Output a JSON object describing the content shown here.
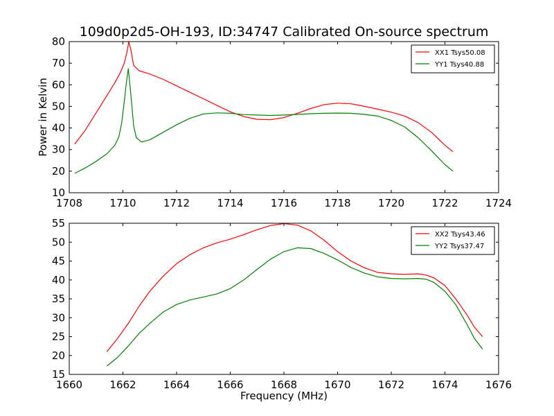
{
  "title": "109d0p2d5-OH-193, ID:34747 Calibrated On-source spectrum",
  "xlabel": "Frequency (MHz)",
  "chart_data": [
    {
      "type": "line",
      "title": "109d0p2d5-OH-193, ID:34747 Calibrated On-source spectrum",
      "ylabel": "Power in Kelvin",
      "xlim": [
        1708,
        1724
      ],
      "ylim": [
        10,
        80
      ],
      "xticks": [
        1708,
        1710,
        1712,
        1714,
        1716,
        1718,
        1720,
        1722,
        1724
      ],
      "yticks": [
        10,
        20,
        30,
        40,
        50,
        60,
        70,
        80
      ],
      "legend_position": "top-right",
      "series": [
        {
          "name": "XX1 Tsys50.08",
          "color": "#ff0000",
          "x": [
            1708.2,
            1708.6,
            1709.0,
            1709.4,
            1709.7,
            1709.9,
            1710.05,
            1710.15,
            1710.22,
            1710.3,
            1710.4,
            1710.6,
            1711.0,
            1711.5,
            1712.0,
            1712.5,
            1713.0,
            1713.5,
            1714.0,
            1714.5,
            1715.0,
            1715.5,
            1716.0,
            1716.5,
            1717.0,
            1717.5,
            1718.0,
            1718.5,
            1719.0,
            1719.5,
            1720.0,
            1720.5,
            1721.0,
            1721.5,
            1722.0,
            1722.3
          ],
          "y": [
            32.5,
            39.0,
            47.0,
            55.0,
            61.0,
            65.5,
            70.0,
            75.0,
            80.0,
            76.0,
            69.0,
            66.5,
            65.0,
            62.5,
            59.5,
            56.5,
            53.5,
            50.5,
            47.5,
            45.3,
            44.0,
            43.8,
            44.8,
            46.8,
            49.0,
            50.8,
            51.5,
            51.2,
            50.0,
            48.7,
            47.3,
            45.5,
            42.5,
            38.0,
            32.0,
            29.0
          ]
        },
        {
          "name": "YY1 Tsys40.88",
          "color": "#008000",
          "x": [
            1708.2,
            1708.6,
            1709.0,
            1709.4,
            1709.7,
            1709.85,
            1709.95,
            1710.05,
            1710.12,
            1710.2,
            1710.3,
            1710.4,
            1710.5,
            1710.7,
            1711.0,
            1711.5,
            1712.0,
            1712.5,
            1713.0,
            1713.5,
            1714.0,
            1714.5,
            1715.0,
            1715.5,
            1716.0,
            1716.5,
            1717.0,
            1717.5,
            1718.0,
            1718.5,
            1719.0,
            1719.5,
            1720.0,
            1720.5,
            1721.0,
            1721.5,
            1722.0,
            1722.3
          ],
          "y": [
            19.0,
            21.5,
            24.5,
            28.0,
            32.0,
            36.0,
            42.0,
            52.0,
            60.0,
            67.5,
            55.0,
            41.0,
            35.5,
            33.5,
            34.5,
            38.0,
            41.5,
            44.5,
            46.5,
            47.0,
            46.8,
            46.2,
            46.0,
            45.8,
            46.0,
            46.3,
            46.6,
            46.8,
            46.9,
            46.8,
            46.3,
            45.5,
            43.5,
            40.5,
            35.5,
            29.5,
            23.0,
            20.0
          ]
        }
      ]
    },
    {
      "type": "line",
      "xlabel": "Frequency (MHz)",
      "xlim": [
        1660,
        1676
      ],
      "ylim": [
        15,
        55
      ],
      "xticks": [
        1660,
        1662,
        1664,
        1666,
        1668,
        1670,
        1672,
        1674,
        1676
      ],
      "yticks": [
        15,
        20,
        25,
        30,
        35,
        40,
        45,
        50,
        55
      ],
      "legend_position": "top-right",
      "series": [
        {
          "name": "XX2 Tsys43.46",
          "color": "#ff0000",
          "x": [
            1661.4,
            1661.8,
            1662.2,
            1662.6,
            1663.0,
            1663.5,
            1664.0,
            1664.5,
            1665.0,
            1665.5,
            1666.0,
            1666.5,
            1667.0,
            1667.5,
            1668.0,
            1668.5,
            1669.0,
            1669.5,
            1670.0,
            1670.5,
            1671.0,
            1671.5,
            1672.0,
            1672.5,
            1673.0,
            1673.3,
            1673.6,
            1674.0,
            1674.4,
            1674.8,
            1675.1,
            1675.4
          ],
          "y": [
            21.0,
            24.5,
            28.5,
            33.0,
            37.0,
            41.0,
            44.3,
            46.7,
            48.5,
            49.8,
            50.8,
            52.0,
            53.3,
            54.4,
            54.9,
            54.5,
            53.0,
            50.5,
            47.5,
            45.0,
            43.2,
            42.0,
            41.6,
            41.5,
            41.6,
            41.3,
            40.5,
            38.5,
            35.0,
            31.0,
            27.5,
            25.0
          ]
        },
        {
          "name": "YY2 Tsys37.47",
          "color": "#008000",
          "x": [
            1661.4,
            1661.8,
            1662.2,
            1662.6,
            1663.0,
            1663.5,
            1664.0,
            1664.5,
            1665.0,
            1665.5,
            1666.0,
            1666.5,
            1667.0,
            1667.5,
            1668.0,
            1668.5,
            1669.0,
            1669.5,
            1670.0,
            1670.5,
            1671.0,
            1671.5,
            1672.0,
            1672.5,
            1673.0,
            1673.3,
            1673.6,
            1674.0,
            1674.4,
            1674.8,
            1675.1,
            1675.4
          ],
          "y": [
            17.2,
            19.5,
            22.5,
            25.8,
            28.5,
            31.5,
            33.5,
            34.7,
            35.5,
            36.3,
            37.7,
            40.0,
            42.8,
            45.5,
            47.5,
            48.5,
            48.3,
            47.0,
            45.3,
            43.3,
            41.8,
            40.8,
            40.4,
            40.3,
            40.4,
            40.2,
            39.3,
            37.0,
            33.5,
            28.5,
            24.5,
            21.7
          ]
        }
      ]
    }
  ]
}
